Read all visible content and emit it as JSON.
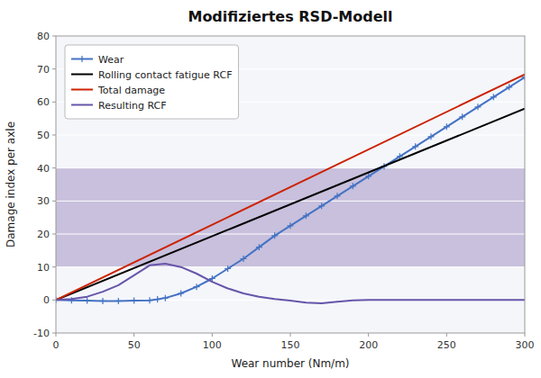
{
  "chart_data": {
    "type": "line",
    "title": "Modifiziertes RSD-Modell",
    "xlabel": "Wear number (Nm/m)",
    "ylabel": "Damage index per axle",
    "xlim": [
      0,
      300
    ],
    "ylim": [
      -10,
      80
    ],
    "xticks": [
      0,
      50,
      100,
      150,
      200,
      250,
      300
    ],
    "yticks": [
      -10,
      0,
      10,
      20,
      30,
      40,
      50,
      60,
      70,
      80
    ],
    "grid": true,
    "legend": "upper left",
    "band": {
      "from": 10,
      "to": 40,
      "color": "#c8c0dc"
    },
    "series": [
      {
        "name": "Wear",
        "color": "#4472c4",
        "marker": "plus",
        "x": [
          0,
          10,
          20,
          30,
          40,
          50,
          60,
          65,
          70,
          80,
          90,
          100,
          110,
          120,
          130,
          140,
          150,
          160,
          170,
          180,
          190,
          200,
          210,
          220,
          230,
          240,
          250,
          260,
          270,
          280,
          290,
          300
        ],
        "values": [
          0,
          -0.1,
          -0.2,
          -0.3,
          -0.3,
          -0.2,
          -0.1,
          0.2,
          0.6,
          2.0,
          4.0,
          6.5,
          9.5,
          12.5,
          16.0,
          19.5,
          22.5,
          25.5,
          28.5,
          31.5,
          34.5,
          37.5,
          40.5,
          43.5,
          46.5,
          49.5,
          52.5,
          55.5,
          58.5,
          61.5,
          64.5,
          67.5
        ]
      },
      {
        "name": "Rolling contact fatigue RCF",
        "color": "#000000",
        "x": [
          0,
          300
        ],
        "values": [
          0,
          57.99
        ]
      },
      {
        "name": "Total damage",
        "color": "#cc2200",
        "x": [
          0,
          300
        ],
        "values": [
          0,
          68.4
        ]
      },
      {
        "name": "Resulting RCF",
        "color": "#6655aa",
        "x": [
          0,
          10,
          20,
          30,
          40,
          50,
          60,
          70,
          80,
          90,
          100,
          110,
          120,
          130,
          140,
          150,
          160,
          170,
          180,
          190,
          200,
          250,
          300
        ],
        "values": [
          0,
          0.3,
          1.0,
          2.5,
          4.5,
          7.5,
          10.5,
          11.0,
          10.0,
          8.0,
          5.5,
          3.5,
          2.0,
          1.0,
          0.3,
          -0.2,
          -0.8,
          -1.0,
          -0.5,
          -0.1,
          0.0,
          0.0,
          0.0
        ]
      }
    ]
  }
}
